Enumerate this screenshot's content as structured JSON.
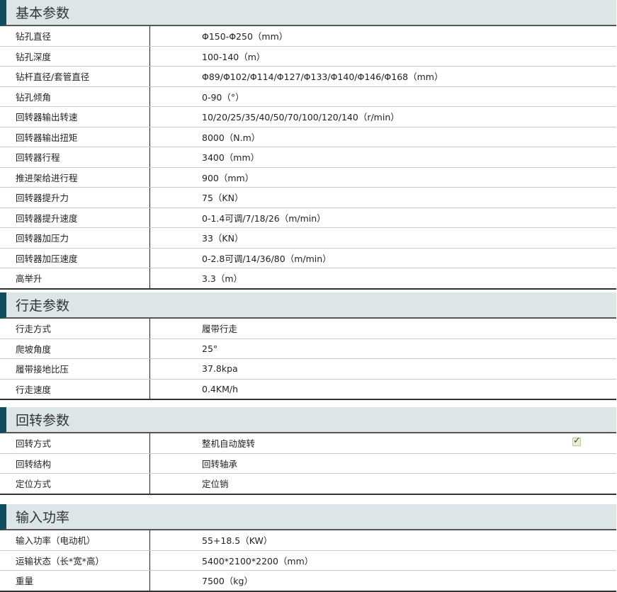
{
  "sections": [
    {
      "title": "基本参数",
      "rows": [
        [
          "钻孔直径",
          "Φ150-Φ250（mm）"
        ],
        [
          "钻孔深度",
          "100-140（m）"
        ],
        [
          "钻杆直径/套管直径",
          "Φ89/Φ102/Φ114/Φ127/Φ133/Φ140/Φ146/Φ168（mm）"
        ],
        [
          "钻孔倾角",
          "0-90（°）"
        ],
        [
          "回转器输出转速",
          "10/20/25/35/40/50/70/100/120/140（r/min）"
        ],
        [
          "回转器输出扭矩",
          "8000（N.m）"
        ],
        [
          "回转器行程",
          "3400（mm）"
        ],
        [
          "推进架给进行程",
          "900（mm）"
        ],
        [
          "回转器提升力",
          "75（KN）"
        ],
        [
          "回转器提升速度",
          "0-1.4可调/7/18/26（m/min）"
        ],
        [
          "回转器加压力",
          "33（KN）"
        ],
        [
          "回转器加压速度",
          "0-2.8可调/14/36/80（m/min）"
        ],
        [
          "高举升",
          "3.3（m）"
        ]
      ]
    },
    {
      "title": "行走参数",
      "rows": [
        [
          "行走方式",
          "履带行走"
        ],
        [
          "爬坡角度",
          "25°"
        ],
        [
          "履带接地比压",
          "37.8kpa"
        ],
        [
          "行走速度",
          "0.4KM/h"
        ]
      ]
    },
    {
      "title": "回转参数",
      "rows": [
        [
          "回转方式",
          "整机自动旋转"
        ],
        [
          "回转结构",
          "回转轴承"
        ],
        [
          "定位方式",
          "定位销"
        ]
      ]
    },
    {
      "title": "输入功率",
      "rows": [
        [
          "输入功率（电动机）",
          "55+18.5（KW）"
        ],
        [
          "运输状态（长*宽*高）",
          "5400*2100*2200（mm）"
        ],
        [
          "重量",
          "7500（kg）"
        ]
      ]
    }
  ],
  "checkmark": "✓"
}
